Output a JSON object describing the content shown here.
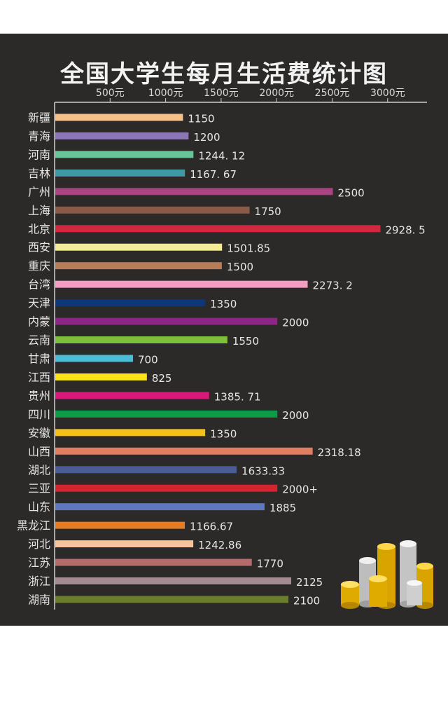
{
  "title": "全国大学生每月生活费统计图",
  "chart_data": {
    "type": "bar",
    "orientation": "horizontal",
    "title": "全国大学生每月生活费统计图",
    "x_ticks": [
      "500元",
      "1000元",
      "1500元",
      "2000元",
      "2500元",
      "3000元"
    ],
    "x_tick_values": [
      500,
      1000,
      1500,
      2000,
      2500,
      3000
    ],
    "categories": [
      "新疆",
      "青海",
      "河南",
      "吉林",
      "广州",
      "上海",
      "北京",
      "西安",
      "重庆",
      "台湾",
      "天津",
      "内蒙",
      "云南",
      "甘肃",
      "江西",
      "贵州",
      "四川",
      "安徽",
      "山西",
      "湖北",
      "三亚",
      "山东",
      "黑龙江",
      "河北",
      "江苏",
      "浙江",
      "湖南"
    ],
    "values": [
      1150,
      1200,
      1244.12,
      1167.67,
      2500,
      1750,
      2928.5,
      1501.85,
      1500,
      2273.2,
      1350,
      2000,
      1550,
      700,
      825,
      1385.71,
      2000,
      1350,
      2318.18,
      1633.33,
      2000,
      1885,
      1166.67,
      1242.86,
      1770,
      2125,
      2100
    ],
    "value_labels": [
      "1150",
      "1200",
      "1244. 12",
      "1167. 67",
      "2500",
      "1750",
      "2928. 5",
      "1501.85",
      "1500",
      "2273. 2",
      "1350",
      "2000",
      "1550",
      "700",
      "825",
      "1385. 71",
      "2000",
      "1350",
      "2318.18",
      "1633.33",
      "2000+",
      "1885",
      "1166.67",
      "1242.86",
      "1770",
      "2125",
      "2100"
    ],
    "colors": [
      "#f5c089",
      "#8d76b8",
      "#69c49a",
      "#3c9aa6",
      "#a8447f",
      "#8a5a46",
      "#d1283e",
      "#f4ec92",
      "#b87c58",
      "#f39dc0",
      "#0f3678",
      "#8e2488",
      "#7fbf39",
      "#4bbbd6",
      "#fbe31b",
      "#d8197a",
      "#0f9a48",
      "#f2c11b",
      "#e07e62",
      "#4a5b96",
      "#d32431",
      "#5d78c1",
      "#e67b22",
      "#f3c49c",
      "#b56b6c",
      "#a38b92",
      "#6b7c2d"
    ],
    "grid": false,
    "legend": "none"
  }
}
